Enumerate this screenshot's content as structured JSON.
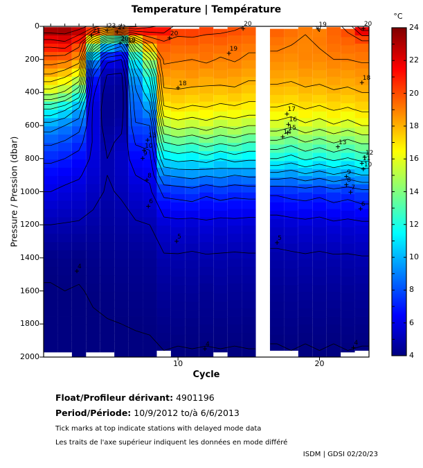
{
  "title": "Temperature | Température",
  "colorbar": {
    "unit": "°C",
    "min": 4,
    "max": 24,
    "labels": [
      24,
      22,
      20,
      18,
      16,
      14,
      12,
      10,
      8,
      6,
      4
    ]
  },
  "axes": {
    "xlabel": "Cycle",
    "ylabel": "Pressure / Pression (dbar)",
    "x_ticks": [
      10,
      20
    ],
    "y_ticks": [
      0,
      200,
      400,
      600,
      800,
      1000,
      1200,
      1400,
      1600,
      1800,
      2000
    ],
    "x_range": [
      0.5,
      23.5
    ],
    "y_range": [
      0,
      2000
    ]
  },
  "footer": {
    "float_label": "Float/Profileur dérivant:",
    "float_value": "4901196",
    "period_label": "Period/Période:",
    "period_value": "10/9/2012  to/à  6/6/2013",
    "note_en": "Tick marks at top indicate stations with delayed mode data",
    "note_fr": "Les traits de l'axe supérieur indiquent les données en mode différé",
    "credit": "ISDM | GDSI  02/20/23"
  },
  "chart_data": {
    "type": "heatmap",
    "title": "Temperature | Température",
    "xlabel": "Cycle",
    "ylabel": "Pressure / Pression (dbar)",
    "colormap": "jet",
    "value_unit": "°C",
    "value_range": [
      4,
      24
    ],
    "contour_levels": [
      4,
      5,
      6,
      7,
      8,
      9,
      10,
      11,
      12,
      13,
      14,
      15,
      16,
      17,
      18,
      19,
      20,
      21,
      22,
      23
    ],
    "x_cycles": [
      1,
      2,
      3,
      4,
      5,
      6,
      7,
      8,
      9,
      10,
      11,
      12,
      13,
      14,
      15,
      16,
      17,
      18,
      19,
      20,
      21,
      22,
      23
    ],
    "missing_cycles": [
      16
    ],
    "delayed_mode_cycles": [
      1,
      2,
      3,
      4,
      5,
      6,
      7
    ],
    "pressure_levels": [
      0,
      100,
      200,
      300,
      400,
      500,
      600,
      700,
      800,
      900,
      1000,
      1200,
      1400,
      1600,
      1800,
      2000
    ],
    "profiles": [
      [
        24.0,
        21.5,
        19.6,
        17.8,
        15.5,
        12.0,
        9.5,
        8.2,
        7.2,
        6.5,
        6.0,
        5.0,
        4.15,
        3.95,
        3.9,
        3.85
      ],
      [
        24.0,
        21.8,
        19.4,
        17.2,
        14.8,
        11.2,
        9.0,
        7.9,
        7.0,
        6.3,
        5.8,
        4.95,
        4.2,
        4.0,
        3.92,
        3.87
      ],
      [
        23.6,
        20.5,
        18.6,
        16.0,
        13.0,
        9.8,
        8.4,
        7.4,
        6.6,
        6.1,
        5.7,
        4.9,
        4.12,
        3.97,
        3.9,
        3.85
      ],
      [
        22.5,
        15.5,
        9.5,
        7.0,
        6.2,
        5.8,
        5.8,
        5.9,
        5.8,
        5.6,
        5.3,
        4.75,
        4.25,
        4.05,
        3.95,
        3.88
      ],
      [
        21.5,
        11.5,
        6.3,
        4.9,
        4.5,
        4.4,
        4.5,
        4.8,
        5.0,
        5.0,
        4.9,
        4.6,
        4.3,
        4.1,
        3.98,
        3.9
      ],
      [
        23.8,
        9.8,
        6.0,
        4.8,
        4.45,
        4.5,
        4.8,
        5.2,
        5.4,
        5.3,
        5.1,
        4.7,
        4.35,
        4.15,
        4.0,
        3.9
      ],
      [
        23.2,
        15.8,
        11.5,
        9.6,
        8.8,
        8.4,
        7.9,
        7.1,
        6.5,
        6.0,
        5.6,
        4.9,
        4.4,
        4.2,
        4.02,
        3.92
      ],
      [
        22.2,
        18.8,
        14.8,
        12.2,
        10.8,
        9.4,
        8.0,
        7.3,
        6.7,
        6.2,
        5.8,
        5.0,
        4.45,
        4.22,
        4.05,
        3.9
      ],
      [
        21.8,
        19.8,
        19.2,
        18.5,
        17.8,
        16.8,
        15.0,
        13.0,
        11.0,
        9.0,
        7.3,
        5.6,
        4.9,
        4.5,
        4.2,
        3.95
      ],
      [
        20.6,
        19.6,
        19.1,
        18.4,
        17.9,
        17.0,
        15.5,
        13.4,
        11.4,
        9.2,
        7.4,
        5.7,
        4.9,
        4.45,
        4.2,
        3.9
      ],
      [
        20.6,
        19.7,
        19.0,
        18.6,
        17.7,
        16.8,
        15.2,
        13.1,
        11.2,
        9.4,
        7.6,
        5.6,
        4.85,
        4.5,
        4.15,
        3.95
      ],
      [
        20.5,
        19.5,
        19.2,
        18.3,
        17.8,
        16.9,
        15.6,
        13.6,
        11.6,
        9.1,
        7.2,
        5.8,
        4.9,
        4.4,
        4.2,
        3.9
      ],
      [
        20.3,
        19.6,
        18.9,
        18.5,
        17.6,
        16.7,
        15.1,
        13.2,
        11.0,
        9.3,
        7.5,
        5.6,
        4.9,
        4.5,
        4.15,
        3.95
      ],
      [
        20.2,
        19.4,
        19.1,
        18.4,
        17.8,
        16.8,
        15.4,
        13.5,
        11.5,
        9.0,
        7.3,
        5.7,
        4.85,
        4.45,
        4.2,
        3.9
      ],
      [
        19.9,
        19.3,
        18.8,
        18.2,
        17.5,
        16.6,
        15.0,
        13.0,
        11.2,
        9.2,
        7.4,
        5.6,
        4.9,
        4.5,
        4.15,
        3.95
      ],
      null,
      [
        19.8,
        19.2,
        18.8,
        18.3,
        17.7,
        16.9,
        15.6,
        13.8,
        12.0,
        9.6,
        7.2,
        5.5,
        4.8,
        4.4,
        4.15,
        3.9
      ],
      [
        19.45,
        19.05,
        18.7,
        18.2,
        17.6,
        16.7,
        15.2,
        13.4,
        11.6,
        9.3,
        7.4,
        5.6,
        4.85,
        4.45,
        4.2,
        3.95
      ],
      [
        19.15,
        18.85,
        18.9,
        18.4,
        17.8,
        17.0,
        15.8,
        14.0,
        12.2,
        9.8,
        7.5,
        5.7,
        4.9,
        4.5,
        4.15,
        3.9
      ],
      [
        18.95,
        19.1,
        18.8,
        18.3,
        17.7,
        16.8,
        15.4,
        13.6,
        11.8,
        9.4,
        7.3,
        5.6,
        4.85,
        4.45,
        4.2,
        3.95
      ],
      [
        19.6,
        19.4,
        19.0,
        18.5,
        17.9,
        17.1,
        15.9,
        14.1,
        12.3,
        9.9,
        7.6,
        5.8,
        4.9,
        4.5,
        4.15,
        3.9
      ],
      [
        20.3,
        19.5,
        19.0,
        18.4,
        17.8,
        16.9,
        15.5,
        13.7,
        11.9,
        9.5,
        7.4,
        5.7,
        4.9,
        4.45,
        4.2,
        3.95
      ],
      [
        22.8,
        19.6,
        19.1,
        18.6,
        18.0,
        17.2,
        16.0,
        14.2,
        12.4,
        10.0,
        7.7,
        5.8,
        4.95,
        4.5,
        4.2,
        3.9
      ]
    ],
    "min_pressure": [
      5,
      5,
      5,
      5,
      5,
      5,
      5,
      5,
      5,
      15,
      15,
      5,
      15,
      5,
      5,
      null,
      15,
      15,
      5,
      15,
      5,
      15,
      5
    ],
    "max_pressure": [
      1970,
      1970,
      2000,
      1970,
      1970,
      2000,
      2000,
      2000,
      1960,
      2000,
      2000,
      2000,
      1970,
      2000,
      2000,
      null,
      1960,
      1960,
      2000,
      2000,
      2000,
      1970,
      1960
    ],
    "contour_labels": [
      {
        "value": "21",
        "cycle": 3.9,
        "pressure": 55
      },
      {
        "value": "23",
        "cycle": 5.0,
        "pressure": 25
      },
      {
        "value": "22",
        "cycle": 5.7,
        "pressure": 33
      },
      {
        "value": "20",
        "cycle": 5.9,
        "pressure": 103
      },
      {
        "value": "19",
        "cycle": 6.4,
        "pressure": 112
      },
      {
        "value": "20",
        "cycle": 9.4,
        "pressure": 70
      },
      {
        "value": "18",
        "cycle": 10.0,
        "pressure": 372
      },
      {
        "value": "19",
        "cycle": 13.6,
        "pressure": 163
      },
      {
        "value": "20",
        "cycle": 14.6,
        "pressure": 14
      },
      {
        "value": "13",
        "cycle": 7.85,
        "pressure": 688
      },
      {
        "value": "10",
        "cycle": 7.6,
        "pressure": 750
      },
      {
        "value": "9",
        "cycle": 7.5,
        "pressure": 798
      },
      {
        "value": "8",
        "cycle": 7.8,
        "pressure": 930
      },
      {
        "value": "6",
        "cycle": 7.9,
        "pressure": 1088
      },
      {
        "value": "5",
        "cycle": 9.9,
        "pressure": 1300
      },
      {
        "value": "4",
        "cycle": 2.85,
        "pressure": 1480
      },
      {
        "value": "4",
        "cycle": 11.9,
        "pressure": 1950
      },
      {
        "value": "19",
        "cycle": 19.9,
        "pressure": 15
      },
      {
        "value": "20",
        "cycle": 23.1,
        "pressure": 14
      },
      {
        "value": "18",
        "cycle": 23.0,
        "pressure": 340
      },
      {
        "value": "17",
        "cycle": 17.7,
        "pressure": 530
      },
      {
        "value": "16",
        "cycle": 17.8,
        "pressure": 593
      },
      {
        "value": "15",
        "cycle": 17.75,
        "pressure": 643
      },
      {
        "value": "14",
        "cycle": 17.4,
        "pressure": 668
      },
      {
        "value": "13",
        "cycle": 21.3,
        "pressure": 728
      },
      {
        "value": "12",
        "cycle": 23.2,
        "pressure": 792
      },
      {
        "value": "11",
        "cycle": 23.0,
        "pressure": 828
      },
      {
        "value": "10",
        "cycle": 23.1,
        "pressure": 863
      },
      {
        "value": "9",
        "cycle": 21.9,
        "pressure": 908
      },
      {
        "value": "8",
        "cycle": 21.9,
        "pressure": 958
      },
      {
        "value": "7",
        "cycle": 22.2,
        "pressure": 1003
      },
      {
        "value": "6",
        "cycle": 22.9,
        "pressure": 1103
      },
      {
        "value": "5",
        "cycle": 17.0,
        "pressure": 1308
      },
      {
        "value": "4",
        "cycle": 22.4,
        "pressure": 1943
      }
    ]
  }
}
